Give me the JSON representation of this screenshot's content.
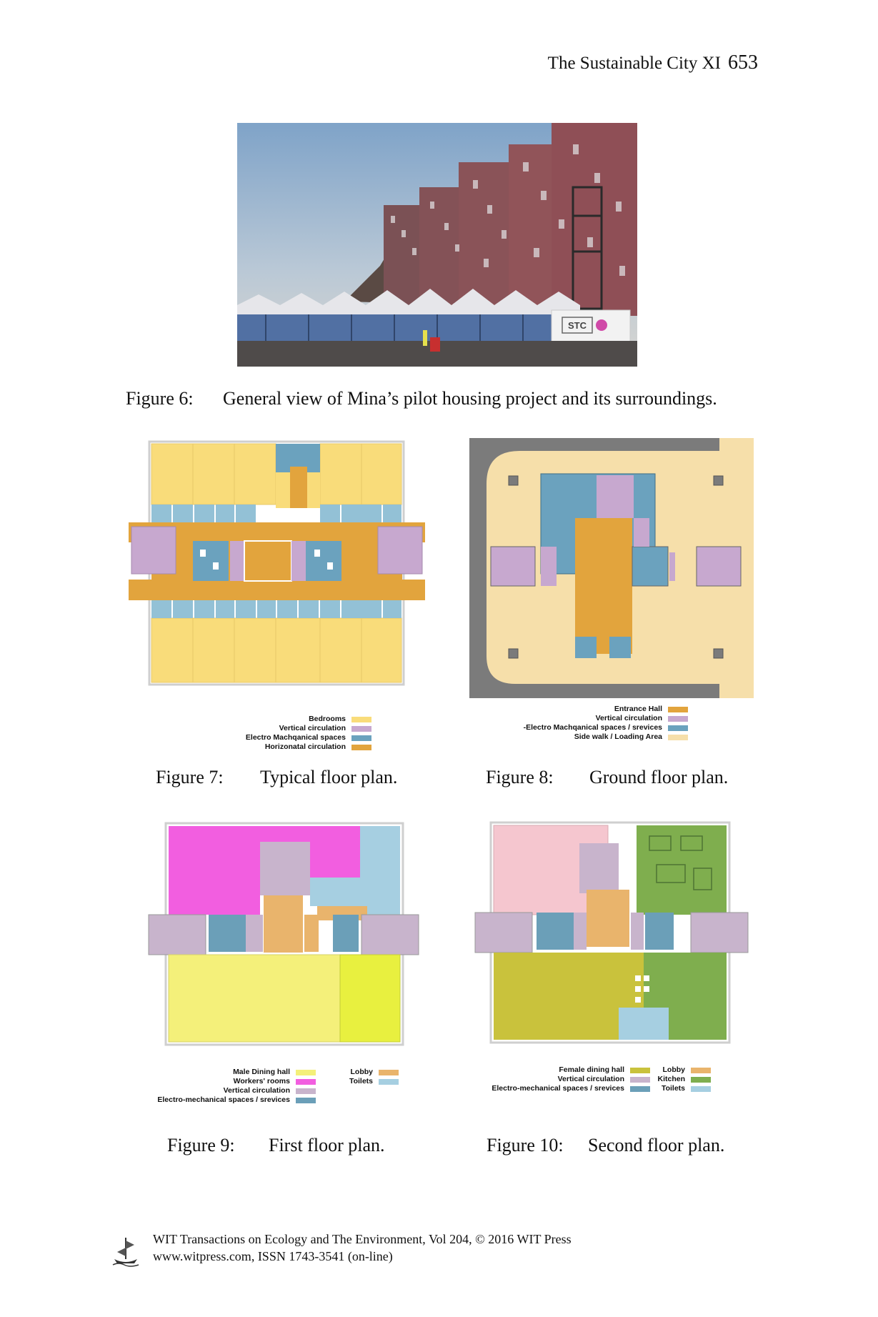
{
  "header": {
    "running_title": "The Sustainable City XI",
    "page_number": "653"
  },
  "fig6": {
    "label": "Figure 6:",
    "caption": "General view of Mina’s pilot housing project and its surroundings.",
    "sign_text": "STC"
  },
  "fig7": {
    "label": "Figure 7:",
    "caption": "Typical floor plan.",
    "legend": [
      {
        "label": "Bedrooms",
        "color": "#f9dc7a"
      },
      {
        "label": "Vertical circulation",
        "color": "#c7a8cf"
      },
      {
        "label": "Electro Machqanical spaces",
        "color": "#6ba2be"
      },
      {
        "label": "Horizonatal circulation",
        "color": "#e2a43d"
      }
    ]
  },
  "fig8": {
    "label": "Figure 8:",
    "caption": "Ground floor plan.",
    "legend": [
      {
        "label": "Entrance Hall",
        "color": "#e2a43d"
      },
      {
        "label": "Vertical circulation",
        "color": "#c7a8cf"
      },
      {
        "label": "-Electro Machqanical spaces / srevices",
        "color": "#6ba2be"
      },
      {
        "label": "Side walk / Loading Area",
        "color": "#f6dfaa"
      }
    ]
  },
  "fig9": {
    "label": "Figure 9:",
    "caption": "First floor plan.",
    "legend_left": [
      {
        "label": "Male Dining hall",
        "color": "#f4f07a"
      },
      {
        "label": "Workers' rooms",
        "color": "#f25ee0"
      },
      {
        "label": "Vertical circulation",
        "color": "#c8b4cc"
      },
      {
        "label": "Electro-mechanical spaces / srevices",
        "color": "#6b9fb8"
      }
    ],
    "legend_right": [
      {
        "label": "Lobby",
        "color": "#e9b46c"
      },
      {
        "label": "Toilets",
        "color": "#a6cfe1"
      }
    ]
  },
  "fig10": {
    "label": "Figure 10:",
    "caption": "Second floor plan.",
    "legend_left": [
      {
        "label": "Female dining hall",
        "color": "#c9c23c"
      },
      {
        "label": "Vertical circulation",
        "color": "#c8b4cc"
      },
      {
        "label": "Electro-mechanical spaces / srevices",
        "color": "#6b9fb8"
      }
    ],
    "legend_right": [
      {
        "label": "Lobby",
        "color": "#e9b46c"
      },
      {
        "label": "Kitchen",
        "color": "#7fae4e"
      },
      {
        "label": "Toilets",
        "color": "#a6cfe1"
      }
    ]
  },
  "footer": {
    "line1": "WIT Transactions on Ecology and The Environment, Vol 204, © 2016 WIT Press",
    "line2": "www.witpress.com, ISSN 1743-3541 (on-line)"
  }
}
